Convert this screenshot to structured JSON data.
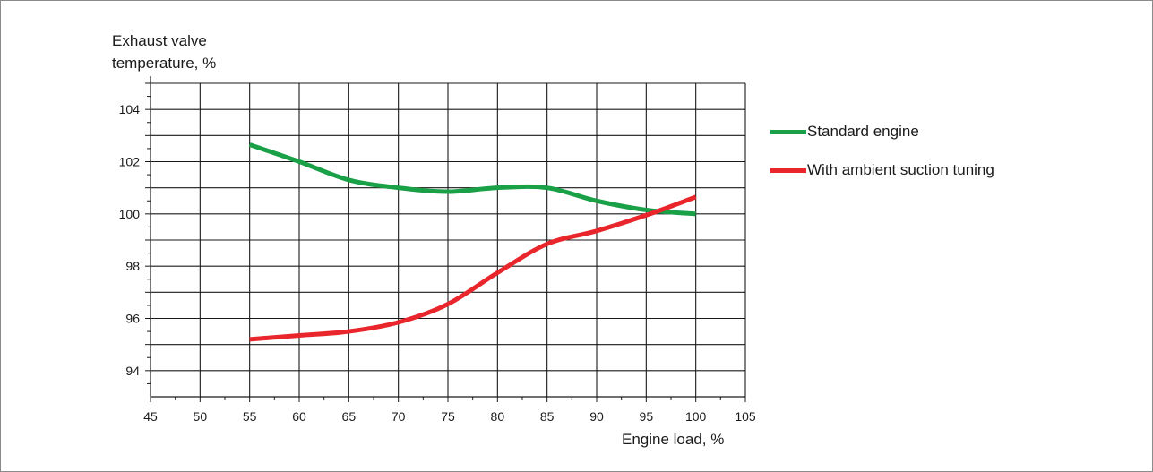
{
  "chart_data": {
    "type": "line",
    "title": "",
    "xlabel": "Engine load, %",
    "ylabel": "Exhaust valve\ntemperature, %",
    "xlim": [
      45,
      105
    ],
    "ylim": [
      93,
      105
    ],
    "x_ticks": [
      "45",
      "50",
      "55",
      "60",
      "65",
      "70",
      "75",
      "80",
      "85",
      "90",
      "95",
      "100",
      "105"
    ],
    "y_ticks": [
      "94",
      "96",
      "98",
      "100",
      "102",
      "104"
    ],
    "grid": true,
    "legend_position": "right",
    "series": [
      {
        "name": "Standard engine",
        "color": "#1aa046",
        "x": [
          55,
          60,
          65,
          70,
          75,
          80,
          85,
          90,
          95,
          100
        ],
        "y": [
          102.65,
          102.0,
          101.3,
          101.0,
          100.85,
          101.0,
          101.0,
          100.5,
          100.15,
          100.0
        ]
      },
      {
        "name": "With ambient suction tuning",
        "color": "#e8262b",
        "x": [
          55,
          60,
          65,
          70,
          75,
          80,
          85,
          90,
          95,
          100
        ],
        "y": [
          95.2,
          95.35,
          95.5,
          95.85,
          96.55,
          97.75,
          98.85,
          99.35,
          99.95,
          100.65
        ]
      }
    ]
  }
}
